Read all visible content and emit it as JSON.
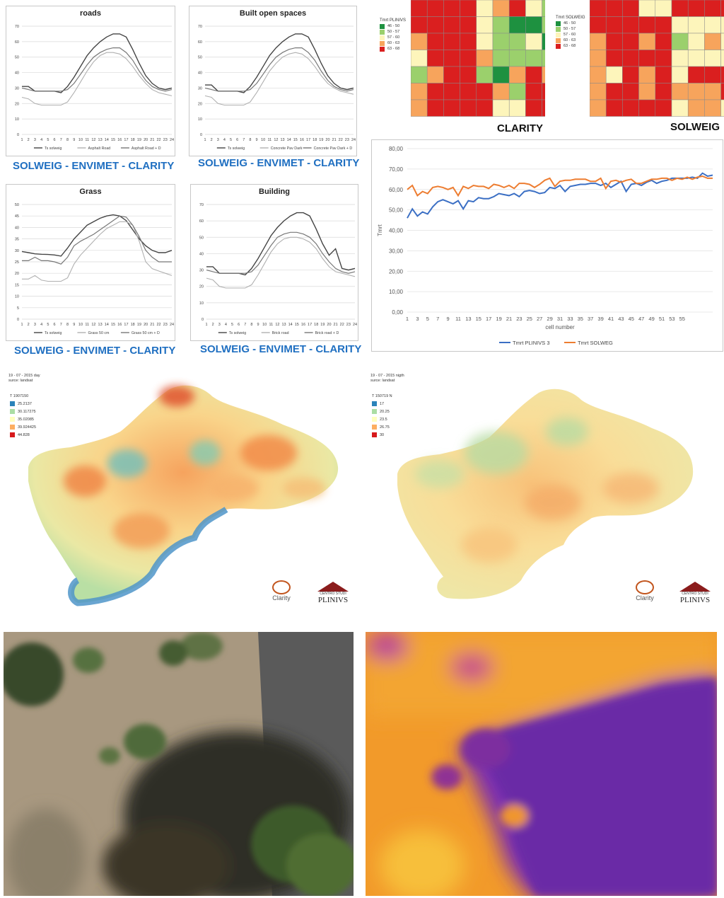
{
  "hourly_charts": [
    {
      "key": "roads",
      "title": "roads",
      "compare": "SOLWEIG - ENVIMET - CLARITY",
      "chart_data": {
        "type": "line",
        "x": [
          1,
          2,
          3,
          4,
          5,
          6,
          7,
          8,
          9,
          10,
          11,
          12,
          13,
          14,
          15,
          16,
          17,
          18,
          19,
          20,
          21,
          22,
          23,
          24
        ],
        "ylim": [
          0,
          70
        ],
        "yticks": [
          0,
          10,
          20,
          30,
          40,
          50,
          60,
          70
        ],
        "series": [
          {
            "name": "Ts solweig",
            "color": "#444444",
            "width": 1.4,
            "values": [
              31,
              31,
              28,
              28,
              28,
              28,
              27,
              31,
              37,
              44,
              51,
              56,
              60,
              63,
              65,
              65,
              63,
              55,
              46,
              38,
              33,
              30,
              29,
              30
            ]
          },
          {
            "name": "Asphalt Road",
            "color": "#b0b0b0",
            "width": 1.1,
            "values": [
              24,
              23,
              20,
              19,
              19,
              19,
              19,
              21,
              27,
              34,
              41,
              47,
              51,
              53,
              53,
              52,
              49,
              44,
              38,
              33,
              29,
              27,
              26,
              25
            ]
          },
          {
            "name": "Asphalt Road + D",
            "color": "#777777",
            "width": 1.2,
            "values": [
              30,
              29,
              28,
              28,
              28,
              28,
              28,
              29,
              33,
              39,
              45,
              50,
              53,
              55,
              56,
              56,
              53,
              48,
              41,
              35,
              31,
              29,
              28,
              29
            ]
          }
        ]
      }
    },
    {
      "key": "built",
      "title": "Built open spaces",
      "compare": "SOLWEIG - ENVIMET - CLARITY",
      "chart_data": {
        "type": "line",
        "x": [
          1,
          2,
          3,
          4,
          5,
          6,
          7,
          8,
          9,
          10,
          11,
          12,
          13,
          14,
          15,
          16,
          17,
          18,
          19,
          20,
          21,
          22,
          23,
          24
        ],
        "ylim": [
          0,
          70
        ],
        "yticks": [
          0,
          10,
          20,
          30,
          40,
          50,
          60,
          70
        ],
        "series": [
          {
            "name": "Ts solweig",
            "color": "#444444",
            "width": 1.4,
            "values": [
              32,
              32,
              28,
              28,
              28,
              28,
              27,
              31,
              37,
              44,
              51,
              56,
              60,
              63,
              65,
              65,
              63,
              55,
              46,
              38,
              33,
              30,
              29,
              30
            ]
          },
          {
            "name": "Concrete Pav Dark",
            "color": "#b0b0b0",
            "width": 1.1,
            "values": [
              25,
              24,
              20,
              19,
              19,
              19,
              19,
              21,
              27,
              34,
              41,
              46,
              50,
              52,
              53,
              52,
              49,
              44,
              38,
              33,
              30,
              28,
              27,
              26
            ]
          },
          {
            "name": "Concrete Pav Dark + D",
            "color": "#777777",
            "width": 1.2,
            "values": [
              30,
              29,
              28,
              28,
              28,
              28,
              28,
              29,
              33,
              39,
              45,
              50,
              53,
              55,
              56,
              56,
              53,
              48,
              41,
              35,
              31,
              29,
              28,
              29
            ]
          }
        ]
      }
    },
    {
      "key": "grass",
      "title": "Grass",
      "compare": "SOLWEIG - ENVIMET - CLARITY",
      "chart_data": {
        "type": "line",
        "x": [
          1,
          2,
          3,
          4,
          5,
          6,
          7,
          8,
          9,
          10,
          11,
          12,
          13,
          14,
          15,
          16,
          17,
          18,
          19,
          20,
          21,
          22,
          23,
          24
        ],
        "ylim": [
          0,
          50
        ],
        "yticks": [
          0,
          5,
          10,
          15,
          20,
          25,
          30,
          35,
          40,
          45,
          50
        ],
        "series": [
          {
            "name": "Ts solweig",
            "color": "#444444",
            "width": 1.4,
            "values": [
              29.5,
              29,
              28.5,
              28.3,
              28.2,
              28,
              27.5,
              31,
              35,
              38,
              41,
              42.5,
              44,
              45,
              45.5,
              45,
              43,
              39,
              35,
              32,
              30,
              29,
              29,
              30
            ]
          },
          {
            "name": "Grass 50 cm",
            "color": "#b0b0b0",
            "width": 1.1,
            "values": [
              17.5,
              17.5,
              19,
              17,
              16.5,
              16.5,
              16.5,
              18,
              24,
              28,
              31,
              34,
              37,
              39.5,
              41,
              42.5,
              42.5,
              41,
              34,
              25,
              22,
              21,
              20,
              19
            ]
          },
          {
            "name": "Grass 50 cm + D",
            "color": "#777777",
            "width": 1.2,
            "values": [
              25.5,
              25.5,
              27,
              25.5,
              25.5,
              25,
              24,
              27,
              32,
              34,
              35.5,
              37,
              39,
              41,
              43,
              45,
              44.5,
              41,
              36,
              30,
              27,
              25,
              25,
              25
            ]
          }
        ]
      }
    },
    {
      "key": "building",
      "title": "Building",
      "compare": "SOLWEIG - ENVIMET - CLARITY",
      "chart_data": {
        "type": "line",
        "x": [
          1,
          2,
          3,
          4,
          5,
          6,
          7,
          8,
          9,
          10,
          11,
          12,
          13,
          14,
          15,
          16,
          17,
          18,
          19,
          20,
          21,
          22,
          23,
          24
        ],
        "ylim": [
          0,
          70
        ],
        "yticks": [
          0,
          10,
          20,
          30,
          40,
          50,
          60,
          70
        ],
        "series": [
          {
            "name": "Ts solweig",
            "color": "#444444",
            "width": 1.4,
            "values": [
              32,
              32,
              28,
              28,
              28,
              28,
              27,
              31,
              37,
              44,
              51,
              56,
              60,
              63,
              65,
              65,
              63,
              55,
              46,
              39,
              43,
              31,
              30,
              31
            ]
          },
          {
            "name": "Brick road",
            "color": "#b0b0b0",
            "width": 1.1,
            "values": [
              25,
              24,
              20,
              19,
              19,
              19,
              19,
              21,
              27,
              34,
              41,
              46,
              49,
              50,
              50,
              49,
              47,
              43,
              37,
              32,
              29,
              28,
              27,
              26
            ]
          },
          {
            "name": "Brick road + D",
            "color": "#777777",
            "width": 1.2,
            "values": [
              30,
              29,
              28,
              28,
              28,
              28,
              28,
              29,
              33,
              39,
              45,
              50,
              52,
              53,
              53,
              52,
              50,
              46,
              40,
              35,
              31,
              29,
              28,
              29
            ]
          }
        ]
      }
    }
  ],
  "legend_labels_roads": [
    "Ts solweig",
    "Asphalt Road",
    "Asphalt Road + D"
  ],
  "legend_labels_built": [
    "Ts solweig",
    "Concrete Pav Dark",
    "Concrete Pav Dark + D"
  ],
  "legend_labels_grass": [
    "Ts solweig",
    "Grass 50 cm",
    "Grass 50 cm + D"
  ],
  "legend_labels_building": [
    "Ts solweig",
    "Brick  road",
    "Brick  road + D"
  ],
  "grids": {
    "clarity": {
      "label": "CLARITY",
      "legend_title": "Tmrt PLINIVS",
      "legend": [
        {
          "range": "46 - 50",
          "color": "#1e9140"
        },
        {
          "range": "50 - 57",
          "color": "#9bd06c"
        },
        {
          "range": "57 - 60",
          "color": "#fdf5bb"
        },
        {
          "range": "60 - 63",
          "color": "#f7a45c"
        },
        {
          "range": "63 - 68",
          "color": "#da1f1f"
        }
      ],
      "cells": [
        [
          4,
          4,
          4,
          4,
          2,
          3,
          4,
          2,
          1
        ],
        [
          4,
          4,
          4,
          4,
          2,
          1,
          0,
          0,
          1
        ],
        [
          3,
          4,
          4,
          4,
          2,
          1,
          1,
          2,
          0
        ],
        [
          2,
          4,
          4,
          4,
          3,
          1,
          1,
          1,
          1
        ],
        [
          1,
          3,
          4,
          4,
          1,
          0,
          3,
          4,
          3
        ],
        [
          3,
          4,
          4,
          4,
          4,
          3,
          1,
          4,
          4
        ],
        [
          3,
          4,
          4,
          4,
          4,
          2,
          2,
          4,
          4
        ]
      ]
    },
    "solweig": {
      "label": "SOLWEIG",
      "legend_title": "Tmrt SOLWEIG",
      "legend": [
        {
          "range": "46 - 50",
          "color": "#1e9140"
        },
        {
          "range": "50 - 57",
          "color": "#9bd06c"
        },
        {
          "range": "57 - 60",
          "color": "#fdf5bb"
        },
        {
          "range": "60 - 63",
          "color": "#f7a45c"
        },
        {
          "range": "63 - 68",
          "color": "#da1f1f"
        }
      ],
      "cells": [
        [
          4,
          4,
          4,
          2,
          2,
          4,
          4,
          4,
          4
        ],
        [
          4,
          4,
          4,
          4,
          4,
          2,
          2,
          2,
          2
        ],
        [
          3,
          4,
          4,
          3,
          4,
          1,
          2,
          3,
          2
        ],
        [
          3,
          4,
          4,
          4,
          4,
          2,
          2,
          2,
          2
        ],
        [
          3,
          2,
          4,
          3,
          4,
          2,
          4,
          4,
          4
        ],
        [
          3,
          4,
          4,
          3,
          4,
          3,
          3,
          3,
          4
        ],
        [
          3,
          4,
          4,
          4,
          4,
          2,
          3,
          3,
          2
        ]
      ]
    }
  },
  "tmrt_chart": {
    "chart_data": {
      "type": "line",
      "ylabel": "Tmrt",
      "xlabel": "cell number",
      "ylim": [
        0,
        80
      ],
      "yticks": [
        "0,00",
        "10,00",
        "20,00",
        "30,00",
        "40,00",
        "50,00",
        "60,00",
        "70,00",
        "80,00"
      ],
      "xticks": [
        "1",
        "3",
        "5",
        "7",
        "9",
        "11",
        "13",
        "15",
        "17",
        "19",
        "21",
        "23",
        "25",
        "27",
        "29",
        "31",
        "33",
        "35",
        "37",
        "39",
        "41",
        "43",
        "45",
        "47",
        "49",
        "51",
        "53",
        "55"
      ],
      "series": [
        {
          "name": "Tmrt PLINIVS 3",
          "color": "#3b6fc4",
          "values": [
            46,
            50.5,
            47,
            49,
            48,
            51.5,
            54,
            55,
            54,
            53,
            54.5,
            50.5,
            54.5,
            54,
            56,
            55.5,
            55.5,
            56.5,
            58,
            57.5,
            57,
            58,
            56.5,
            59,
            59.5,
            59,
            58,
            58.5,
            61,
            60.5,
            62,
            59,
            61.5,
            62,
            62.5,
            62.5,
            63,
            63,
            62,
            63,
            61,
            62.5,
            64,
            59,
            62.5,
            63,
            62,
            63.5,
            64.5,
            63,
            64,
            64.5,
            65.5,
            65.5,
            65.5,
            65.5,
            66,
            65.5,
            68,
            66.5,
            67
          ]
        },
        {
          "name": "Tmrt SOLWEG",
          "color": "#ed7d31",
          "values": [
            60,
            62,
            57,
            59,
            58,
            61,
            61.5,
            61,
            60,
            61,
            57,
            61.5,
            60.5,
            62,
            61.5,
            61.5,
            60.5,
            62.5,
            62,
            61,
            62,
            60.5,
            63,
            63,
            62.5,
            61,
            62.5,
            64.5,
            65.5,
            61.5,
            64,
            64.5,
            64.5,
            65,
            65,
            65,
            64,
            64,
            65.5,
            60.5,
            64,
            64.5,
            63.5,
            64.5,
            65,
            63,
            63,
            64,
            65,
            65,
            65.5,
            65.5,
            64.5,
            65.5,
            65,
            66,
            65,
            66,
            66.5,
            65.5,
            65.5
          ]
        }
      ]
    }
  },
  "maps": {
    "day": {
      "meta": [
        "19 - 07 - 2015 day",
        "surce: landsat"
      ],
      "legend_title": "T 1907150",
      "legend": [
        {
          "value": "25.2137",
          "color": "#2b83ba"
        },
        {
          "value": "30.117275",
          "color": "#abdda4"
        },
        {
          "value": "35.02085",
          "color": "#ffffbf"
        },
        {
          "value": "39.924425",
          "color": "#fdae61"
        },
        {
          "value": "44.828",
          "color": "#d7191c"
        }
      ]
    },
    "night": {
      "meta": [
        "19 - 07 - 2015 nigth",
        "surce: landsat"
      ],
      "legend_title": "T 150719 N",
      "legend": [
        {
          "value": "17",
          "color": "#2b83ba"
        },
        {
          "value": "20.25",
          "color": "#abdda4"
        },
        {
          "value": "23.5",
          "color": "#ffffbf"
        },
        {
          "value": "26.75",
          "color": "#fdae61"
        },
        {
          "value": "30",
          "color": "#d7191c"
        }
      ]
    }
  },
  "logos": {
    "clarity": "Clarity",
    "centro": "CENTRO STUDI",
    "plinivs": "PLINIVS"
  }
}
